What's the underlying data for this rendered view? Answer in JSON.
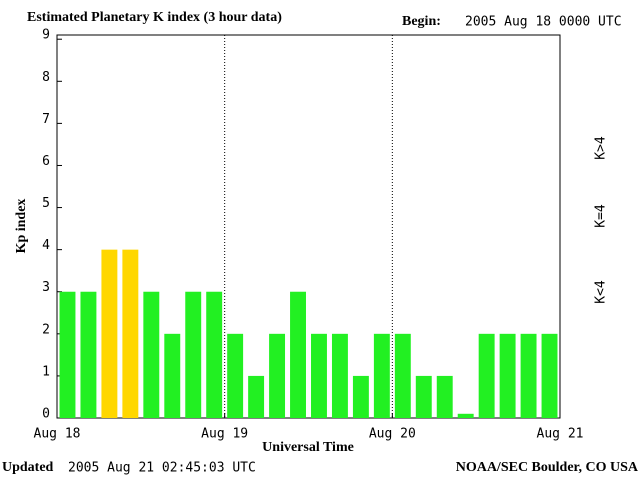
{
  "chart_data": {
    "type": "bar",
    "title": "Estimated Planetary K index (3 hour data)",
    "begin_label": "Begin:",
    "begin_value": "2005 Aug 18 0000 UTC",
    "y_label": "Kp index",
    "x_label": "Universal Time",
    "updated_label": "Updated",
    "updated_value": "2005 Aug 21 02:45:03 UTC",
    "source": "NOAA/SEC Boulder, CO USA",
    "x": [
      1.5,
      4.5,
      7.5,
      10.5,
      13.5,
      16.5,
      19.5,
      22.5,
      25.5,
      28.5,
      31.5,
      34.5,
      37.5,
      40.5,
      43.5,
      46.5,
      49.5,
      52.5,
      55.5,
      58.5,
      61.5,
      64.5,
      67.5,
      70.5
    ],
    "values": [
      3,
      3,
      4,
      4,
      3,
      2,
      3,
      3,
      2,
      1,
      2,
      3,
      2,
      2,
      1,
      2,
      2,
      1,
      1,
      0.1,
      2,
      2,
      2,
      2
    ],
    "bar_colors": [
      "#22f022",
      "#22f022",
      "#ffd700",
      "#ffd700",
      "#22f022",
      "#22f022",
      "#22f022",
      "#22f022",
      "#22f022",
      "#22f022",
      "#22f022",
      "#22f022",
      "#22f022",
      "#22f022",
      "#22f022",
      "#22f022",
      "#22f022",
      "#22f022",
      "#22f022",
      "#22f022",
      "#22f022",
      "#22f022",
      "#22f022",
      "#22f022"
    ],
    "legend": [
      {
        "label": "K<4",
        "color": "#22f022"
      },
      {
        "label": "K=4",
        "color": "#ffd700"
      },
      {
        "label": "K>4",
        "color": "#ff2a00"
      }
    ],
    "xlim": [
      0,
      72
    ],
    "xticks": [
      {
        "value": 0,
        "label": "Aug 18"
      },
      {
        "value": 24,
        "label": "Aug 19"
      },
      {
        "value": 48,
        "label": "Aug 20"
      },
      {
        "value": 72,
        "label": "Aug 21"
      }
    ],
    "ylim": [
      0,
      9.1
    ],
    "yticks": [
      0,
      1,
      2,
      3,
      4,
      5,
      6,
      7,
      8,
      9
    ],
    "grid": true
  }
}
